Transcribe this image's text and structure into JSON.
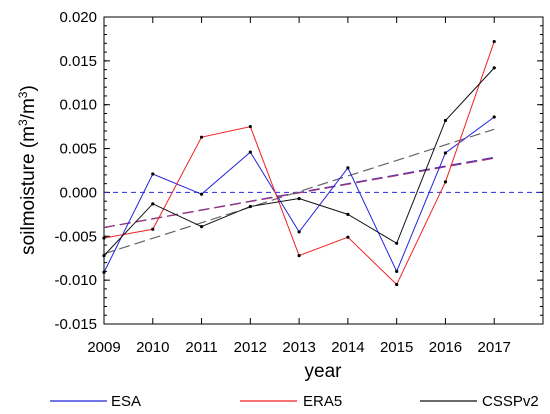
{
  "chart_data": {
    "type": "line",
    "title": "",
    "xlabel": "year",
    "ylabel": "soilmoisture  (m",
    "ylabel_unit_exp1": "3",
    "ylabel_unit_mid": "/m",
    "ylabel_unit_exp2": "3",
    "ylabel_close": ")",
    "x": [
      2009,
      2010,
      2011,
      2012,
      2013,
      2014,
      2015,
      2016,
      2017
    ],
    "xlim": [
      2009,
      2018
    ],
    "ylim": [
      -0.015,
      0.02
    ],
    "xticks": [
      "2009",
      "2010",
      "2011",
      "2012",
      "2013",
      "2014",
      "2015",
      "2016",
      "2017"
    ],
    "yticks": [
      "-0.015",
      "-0.010",
      "-0.005",
      "0.000",
      "0.005",
      "0.010",
      "0.015",
      "0.020"
    ],
    "ytick_values": [
      -0.015,
      -0.01,
      -0.005,
      0.0,
      0.005,
      0.01,
      0.015,
      0.02
    ],
    "grid": false,
    "legend_position": "bottom",
    "series": [
      {
        "name": "ESA",
        "color": "#2222dd",
        "values": [
          -0.0091,
          0.0021,
          -0.0002,
          0.0046,
          -0.0045,
          0.0028,
          -0.009,
          0.0045,
          0.0086
        ],
        "trend": [
          -0.004,
          0.004
        ],
        "trend_color": "#3535c8"
      },
      {
        "name": "ERA5",
        "color": "#ee2222",
        "values": [
          -0.0052,
          -0.0042,
          0.0063,
          0.0075,
          -0.0072,
          -0.0051,
          -0.0105,
          0.0012,
          0.0172
        ],
        "trend": [
          -0.004,
          0.0039
        ],
        "trend_color": "#a0307a"
      },
      {
        "name": "CSSPv2",
        "color": "#111111",
        "values": [
          -0.0072,
          -0.0013,
          -0.0039,
          -0.0016,
          -0.0007,
          -0.0025,
          -0.0058,
          0.0082,
          0.0142
        ],
        "trend": [
          -0.007,
          0.0072
        ],
        "trend_color": "#666666"
      }
    ],
    "zero_line_color": "#2a2ad8"
  }
}
